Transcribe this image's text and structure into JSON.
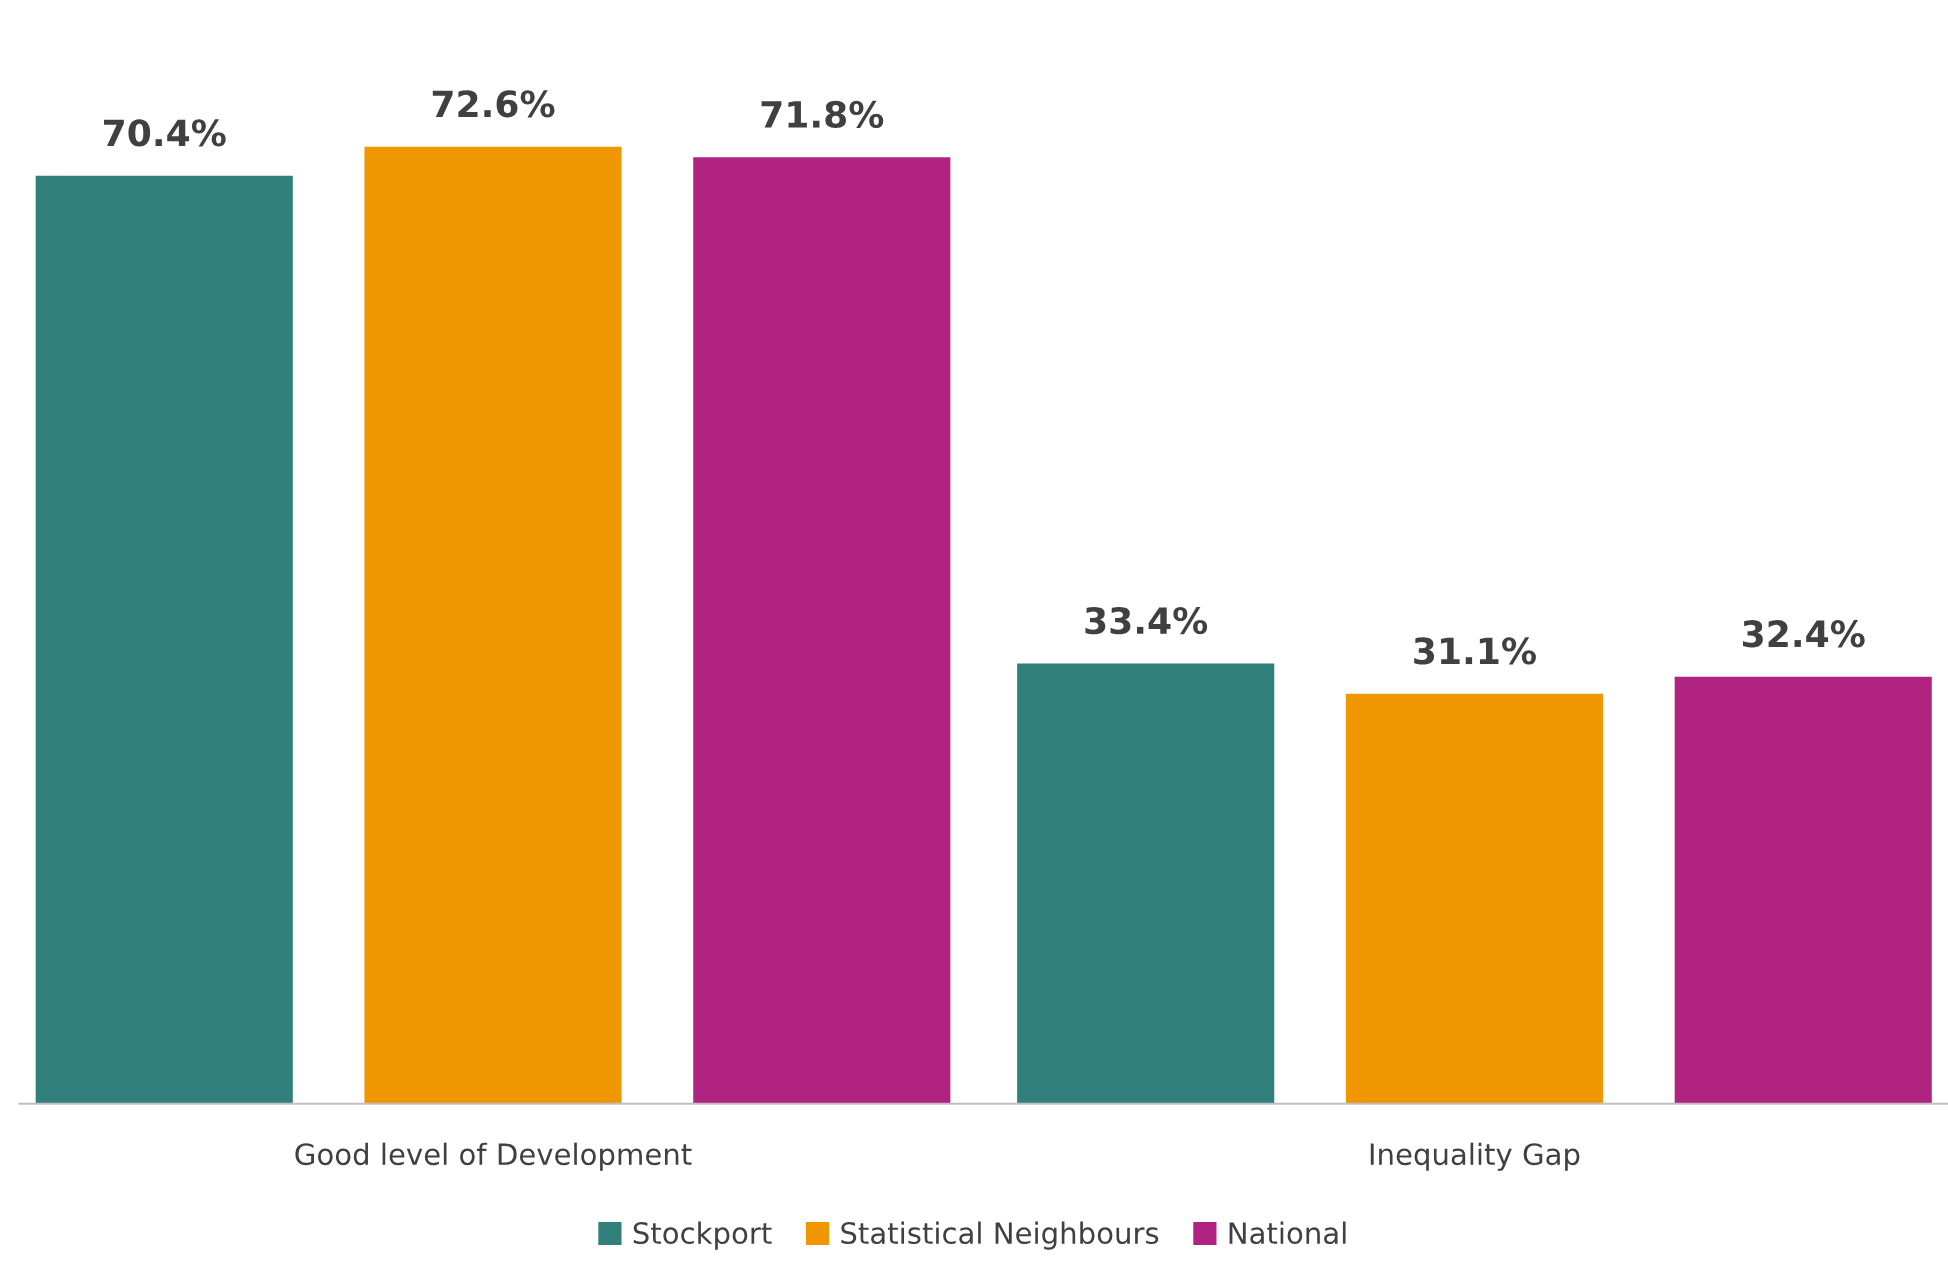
{
  "chart_data": {
    "type": "bar",
    "categories": [
      "Good level of Development",
      "Inequality Gap"
    ],
    "series": [
      {
        "name": "Stockport",
        "color": "#317f7b",
        "values": [
          70.4,
          33.4
        ],
        "value_labels": [
          "70.4%",
          "33.4%"
        ]
      },
      {
        "name": "Statistical Neighbours",
        "color": "#ef9600",
        "values": [
          72.6,
          31.1
        ],
        "value_labels": [
          "72.6%",
          "31.1%"
        ]
      },
      {
        "name": "National",
        "color": "#b12381",
        "values": [
          71.8,
          32.4
        ],
        "value_labels": [
          "71.8%",
          "32.4%"
        ]
      }
    ],
    "legend": "bottom",
    "grid": false
  }
}
